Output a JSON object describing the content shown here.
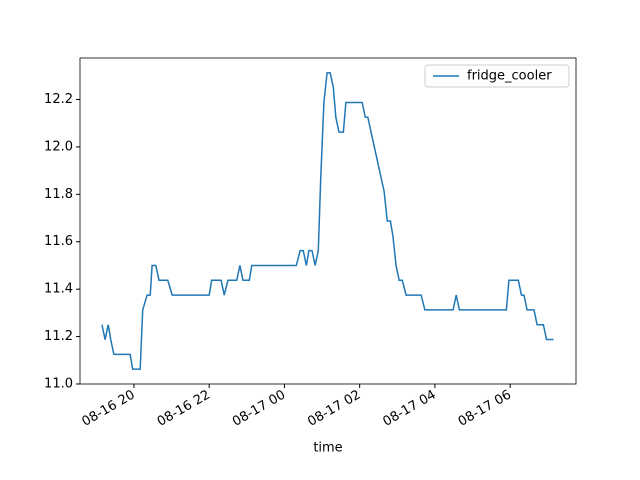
{
  "chart_data": {
    "type": "line",
    "x_label": "time",
    "x": [
      "08-16 19:09",
      "08-16 19:14",
      "08-16 19:19",
      "08-16 19:23",
      "08-16 19:28",
      "08-16 19:54",
      "08-16 19:58",
      "08-16 20:10",
      "08-16 20:14",
      "08-16 20:21",
      "08-16 20:26",
      "08-16 20:29",
      "08-16 20:35",
      "08-16 20:40",
      "08-16 20:54",
      "08-16 21:01",
      "08-16 22:00",
      "08-16 22:04",
      "08-16 22:19",
      "08-16 22:24",
      "08-16 22:30",
      "08-16 22:44",
      "08-16 22:49",
      "08-16 22:54",
      "08-16 23:04",
      "08-16 23:08",
      "08-17 00:19",
      "08-17 00:25",
      "08-17 00:30",
      "08-17 00:35",
      "08-17 00:39",
      "08-17 00:44",
      "08-17 00:49",
      "08-17 00:54",
      "08-17 00:58",
      "08-17 01:03",
      "08-17 01:08",
      "08-17 01:13",
      "08-17 01:18",
      "08-17 01:22",
      "08-17 01:27",
      "08-17 01:34",
      "08-17 01:38",
      "08-17 02:04",
      "08-17 02:09",
      "08-17 02:13",
      "08-17 02:39",
      "08-17 02:44",
      "08-17 02:49",
      "08-17 02:53",
      "08-17 02:58",
      "08-17 03:03",
      "08-17 03:08",
      "08-17 03:14",
      "08-17 03:38",
      "08-17 03:44",
      "08-17 04:29",
      "08-17 04:34",
      "08-17 04:39",
      "08-17 05:54",
      "08-17 05:58",
      "08-17 06:13",
      "08-17 06:18",
      "08-17 06:22",
      "08-17 06:27",
      "08-17 06:38",
      "08-17 06:43",
      "08-17 06:53",
      "08-17 06:58",
      "08-17 07:09"
    ],
    "series": [
      {
        "name": "fridge_cooler",
        "color": "#1f77b4",
        "values": [
          11.25,
          11.1875,
          11.25,
          11.1875,
          11.125,
          11.125,
          11.0625,
          11.0625,
          11.3125,
          11.375,
          11.375,
          11.5,
          11.5,
          11.4375,
          11.4375,
          11.375,
          11.375,
          11.4375,
          11.4375,
          11.375,
          11.4375,
          11.4375,
          11.5,
          11.4375,
          11.4375,
          11.5,
          11.5,
          11.5625,
          11.5625,
          11.5,
          11.5625,
          11.5625,
          11.5,
          11.5625,
          11.875,
          12.1875,
          12.3125,
          12.3125,
          12.25,
          12.125,
          12.0625,
          12.0625,
          12.1875,
          12.1875,
          12.125,
          12.125,
          11.8125,
          11.6875,
          11.6875,
          11.625,
          11.5,
          11.4375,
          11.4375,
          11.375,
          11.375,
          11.3125,
          11.3125,
          11.375,
          11.3125,
          11.3125,
          11.4375,
          11.4375,
          11.375,
          11.375,
          11.3125,
          11.3125,
          11.25,
          11.25,
          11.1875,
          11.1875
        ]
      }
    ],
    "xlim": [
      "08-16 18:34",
      "08-17 07:45"
    ],
    "xticks": [
      {
        "value": "08-16 20:00",
        "label": "08-16 20"
      },
      {
        "value": "08-16 22:00",
        "label": "08-16 22"
      },
      {
        "value": "08-17 00:00",
        "label": "08-17 00"
      },
      {
        "value": "08-17 02:00",
        "label": "08-17 02"
      },
      {
        "value": "08-17 04:00",
        "label": "08-17 04"
      },
      {
        "value": "08-17 06:00",
        "label": "08-17 06"
      }
    ],
    "ylim": [
      11.0,
      12.375
    ],
    "yticks": [
      {
        "value": 11.0,
        "label": "11.0"
      },
      {
        "value": 11.2,
        "label": "11.2"
      },
      {
        "value": 11.4,
        "label": "11.4"
      },
      {
        "value": 11.6,
        "label": "11.6"
      },
      {
        "value": 11.8,
        "label": "11.8"
      },
      {
        "value": 12.0,
        "label": "12.0"
      },
      {
        "value": 12.2,
        "label": "12.2"
      }
    ],
    "legend": "upper right",
    "grid": false
  }
}
